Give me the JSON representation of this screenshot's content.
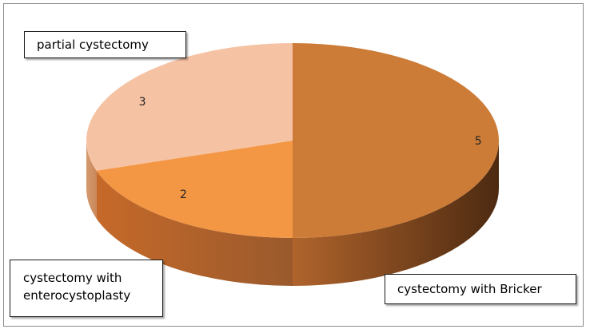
{
  "chart_data": {
    "type": "pie",
    "style": "3d",
    "categories": [
      "cystectomy with Bricker",
      "cystectomy with enterocystoplasty",
      "partial cystectomy"
    ],
    "values": [
      5,
      2,
      3
    ],
    "colors": [
      "#cc7c37",
      "#f39745",
      "#f6c2a4"
    ],
    "side_colors": [
      "#8a4f22",
      "#c2692a",
      "#d59a70"
    ],
    "title": "",
    "legend": "none",
    "callouts": {
      "bricker": "cystectomy with Bricker",
      "entero_line1": "cystectomy with",
      "entero_line2": "enterocystoplasty",
      "partial": "partial cystectomy"
    }
  }
}
